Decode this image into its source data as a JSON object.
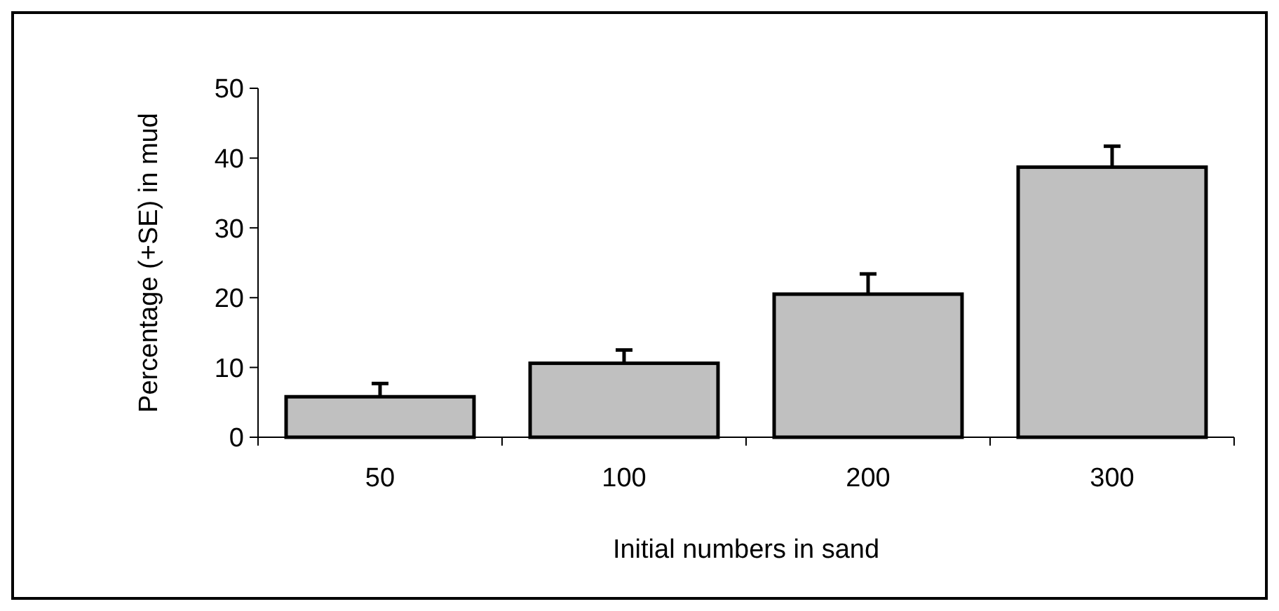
{
  "chart_data": {
    "type": "bar",
    "xlabel": "Initial numbers in sand",
    "ylabel": "Percentage (+SE) in mud",
    "categories": [
      "50",
      "100",
      "200",
      "300"
    ],
    "values": [
      5.8,
      10.6,
      20.5,
      38.7
    ],
    "errors": [
      [
        5.8,
        7.7
      ],
      [
        10.6,
        12.5
      ],
      [
        20.5,
        23.4
      ],
      [
        38.7,
        41.7
      ]
    ],
    "color": "#c0c0c0",
    "ylim": [
      0,
      50
    ],
    "yticks": [
      0,
      10,
      20,
      30,
      40,
      50
    ],
    "grid": false
  }
}
